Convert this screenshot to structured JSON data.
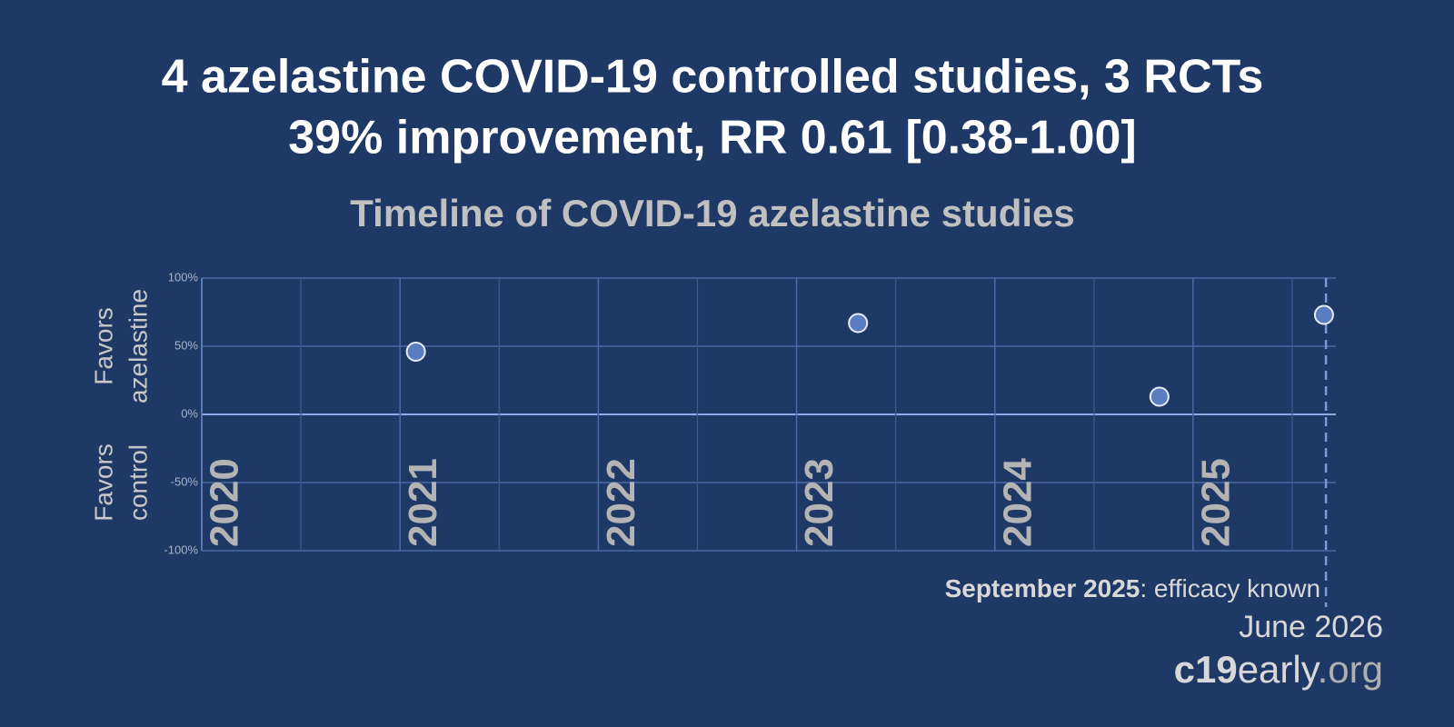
{
  "header": {
    "title_lines": [
      "4 azelastine COVID-19 controlled studies, 3 RCTs",
      "39% improvement, RR 0.61 [0.38-1.00]"
    ]
  },
  "chart_data": {
    "type": "scatter",
    "title": "Timeline of COVID-19 azelastine studies",
    "y_label_top": [
      "Favors",
      "azelastine"
    ],
    "y_label_bottom": [
      "Favors",
      "control"
    ],
    "x": [
      2021.08,
      2023.31,
      2024.83,
      2025.66
    ],
    "values": [
      46,
      67,
      13,
      73
    ],
    "color": "#5b7cc0",
    "xlim": [
      2020,
      2025.72
    ],
    "ylim": [
      -100,
      100
    ],
    "xticks": [
      2020,
      2021,
      2022,
      2023,
      2024,
      2025
    ],
    "yticks": [
      {
        "value": 100,
        "label": "100%"
      },
      {
        "value": 50,
        "label": "50%"
      },
      {
        "value": 0,
        "label": "0%"
      },
      {
        "value": -50,
        "label": "-50%"
      },
      {
        "value": -100,
        "label": "-100%"
      }
    ],
    "grid": true,
    "annotation": {
      "x": 2025.67,
      "bold": "September 2025",
      "text": ": efficacy known"
    }
  },
  "footer": {
    "date": "June 2026",
    "brand": [
      "c19",
      "early",
      ".org"
    ]
  }
}
